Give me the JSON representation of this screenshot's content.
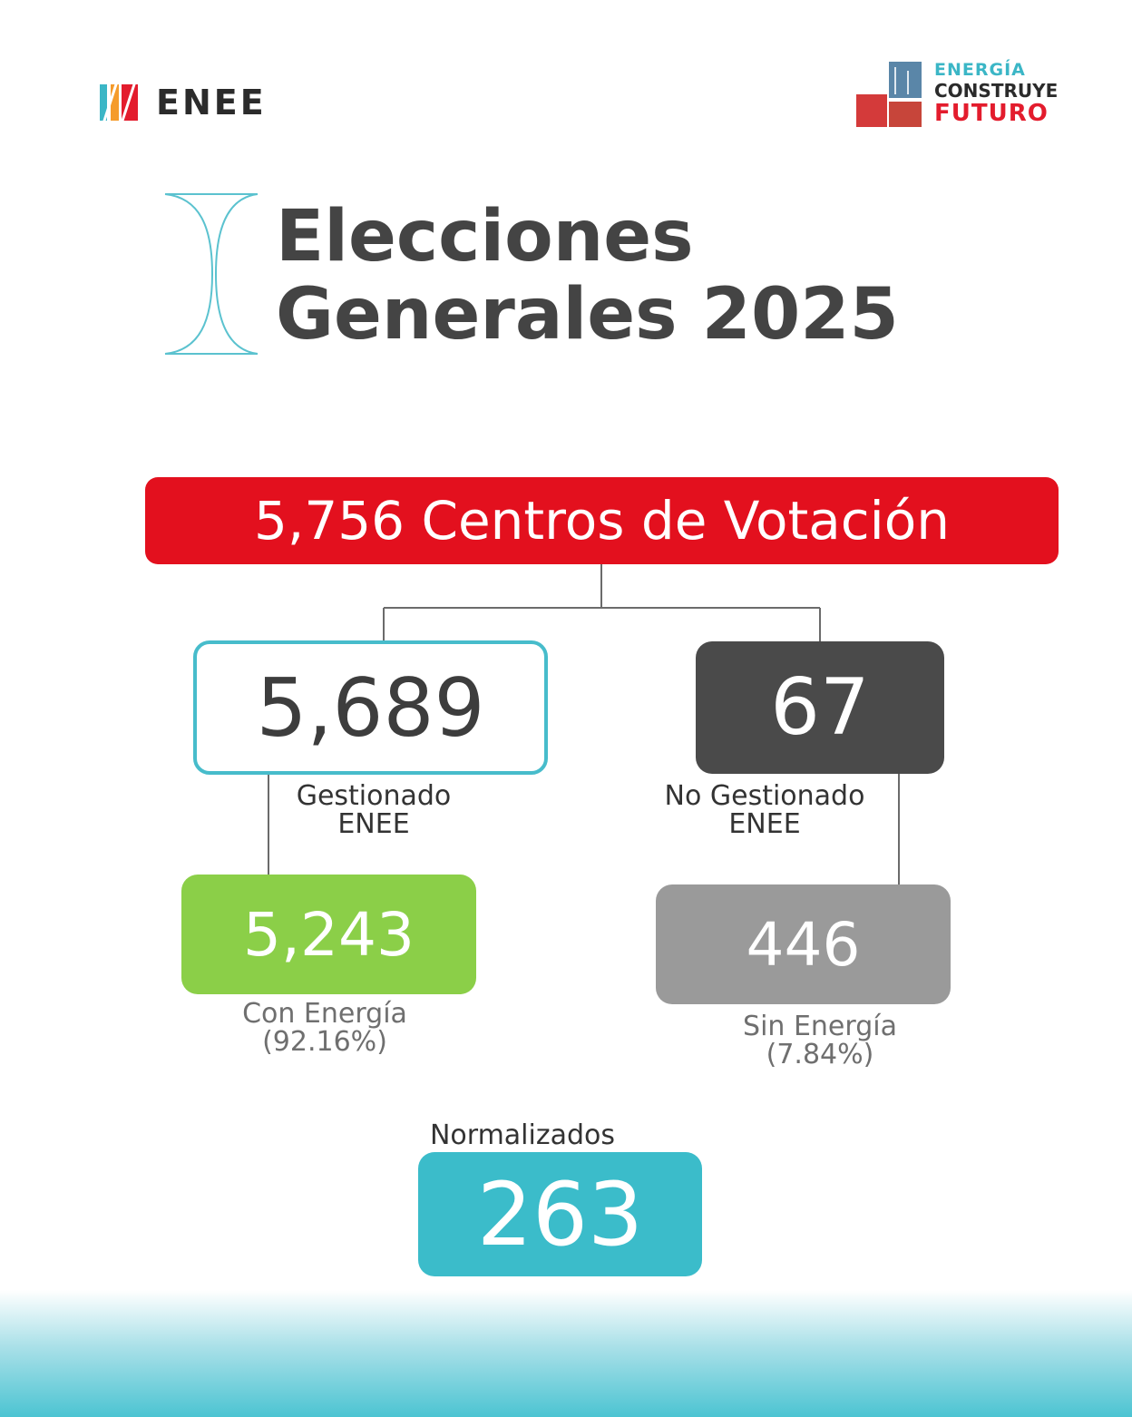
{
  "header": {
    "enee_logo_text": "ENEE",
    "campaign_logo": {
      "line1": "ENERGÍA",
      "line2": "CONSTRUYE",
      "line3": "FUTURO"
    }
  },
  "title": {
    "line1": "Elecciones",
    "line2": "Generales 2025"
  },
  "diagram": {
    "total": "5,756 Centros de Votación",
    "managed": {
      "value": "5,689",
      "label_line1": "Gestionado",
      "label_line2": "ENEE"
    },
    "not_managed": {
      "value": "67",
      "label_line1": "No Gestionado",
      "label_line2": "ENEE"
    },
    "with_power": {
      "value": "5,243",
      "label_line1": "Con Energía",
      "label_line2": "(92.16%)"
    },
    "without_power": {
      "value": "446",
      "label_line1": "Sin Energía",
      "label_line2": "(7.84%)"
    },
    "normalized": {
      "label": "Normalizados",
      "value": "263"
    }
  },
  "colors": {
    "brand_red": "#e3101e",
    "teal": "#47bccb",
    "dark_gray": "#4a4a4a",
    "green": "#8bcf48",
    "gray": "#9a9a9a",
    "normalized_teal": "#3bbcca"
  }
}
